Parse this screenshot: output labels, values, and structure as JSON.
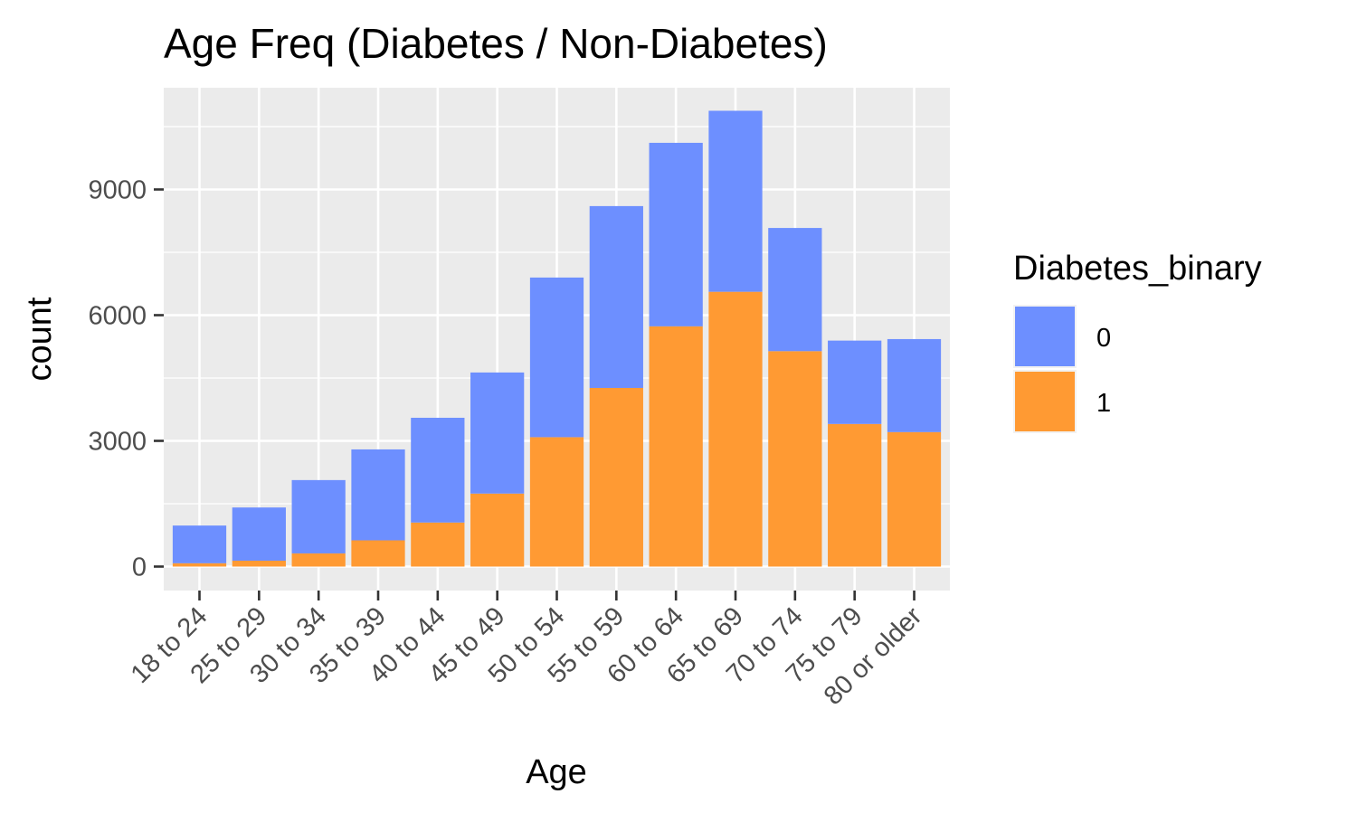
{
  "chart_data": {
    "type": "bar",
    "stacked": true,
    "title": "Age Freq (Diabetes / Non-Diabetes)",
    "xlabel": "Age",
    "ylabel": "count",
    "categories": [
      "18 to 24",
      "25 to 29",
      "30 to 34",
      "35 to 39",
      "40 to 44",
      "45 to 49",
      "50 to 54",
      "55 to 59",
      "60 to 64",
      "65 to 69",
      "70 to 74",
      "75 to 79",
      "80 or older"
    ],
    "series": [
      {
        "name": "0",
        "color": "#6D8FFF",
        "values": [
          900,
          1270,
          1750,
          2170,
          2500,
          2890,
          3810,
          4340,
          4380,
          4320,
          2940,
          1990,
          2220
        ]
      },
      {
        "name": "1",
        "color": "#FF9A33",
        "values": [
          79,
          140,
          314,
          626,
          1051,
          1742,
          3088,
          4263,
          5733,
          6558,
          5141,
          3403,
          3209
        ]
      }
    ],
    "ylim": [
      -500,
      11300
    ],
    "y_ticks": [
      0,
      3000,
      6000,
      9000
    ],
    "grid": true,
    "legend": {
      "title": "Diabetes_binary",
      "position": "right"
    }
  }
}
